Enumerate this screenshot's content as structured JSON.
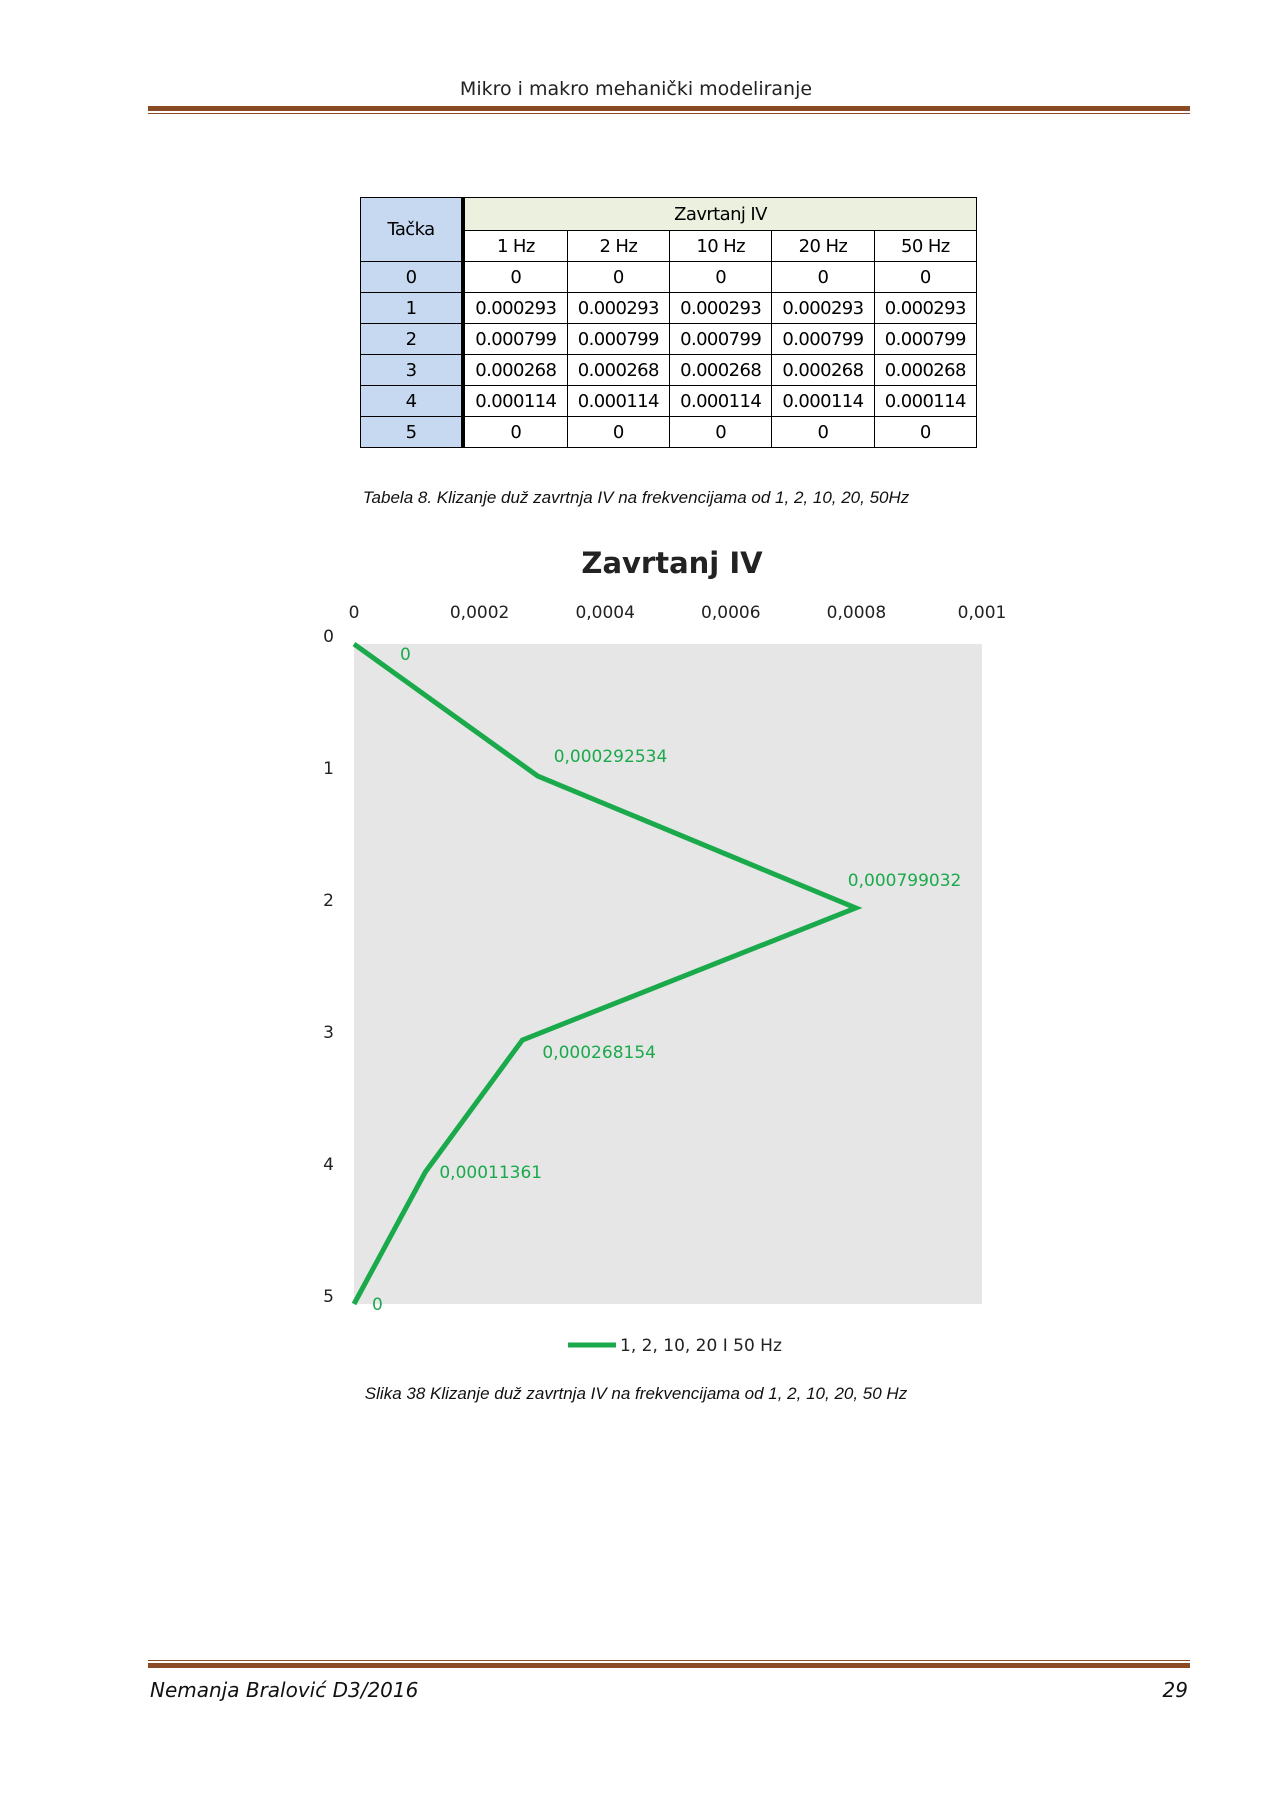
{
  "header": {
    "title": "Mikro i makro mehanički modeliranje"
  },
  "table": {
    "corner_label": "Tačka",
    "group_label": "Zavrtanj IV",
    "columns": [
      "1 Hz",
      "2 Hz",
      "10 Hz",
      "20 Hz",
      "50 Hz"
    ],
    "rows": [
      {
        "point": "0",
        "values": [
          "0",
          "0",
          "0",
          "0",
          "0"
        ]
      },
      {
        "point": "1",
        "values": [
          "0.000293",
          "0.000293",
          "0.000293",
          "0.000293",
          "0.000293"
        ]
      },
      {
        "point": "2",
        "values": [
          "0.000799",
          "0.000799",
          "0.000799",
          "0.000799",
          "0.000799"
        ]
      },
      {
        "point": "3",
        "values": [
          "0.000268",
          "0.000268",
          "0.000268",
          "0.000268",
          "0.000268"
        ]
      },
      {
        "point": "4",
        "values": [
          "0.000114",
          "0.000114",
          "0.000114",
          "0.000114",
          "0.000114"
        ]
      },
      {
        "point": "5",
        "values": [
          "0",
          "0",
          "0",
          "0",
          "0"
        ]
      }
    ],
    "caption": "Tabela 8. Klizanje duž zavrtnja IV na frekvencijama od 1, 2, 10, 20, 50Hz"
  },
  "chart_data": {
    "type": "line",
    "title": "Zavrtanj IV",
    "x_ticks": [
      "0",
      "0,0002",
      "0,0004",
      "0,0006",
      "0,0008",
      "0,001"
    ],
    "x_range": [
      0,
      0.001
    ],
    "y_ticks": [
      "0",
      "1",
      "2",
      "3",
      "4",
      "5"
    ],
    "y_range": [
      0,
      5
    ],
    "y_inverted": true,
    "x_axis_position": "top",
    "series": [
      {
        "name": "1, 2, 10, 20 I 50 Hz",
        "color": "#1aaa4b",
        "points": [
          {
            "y": 0,
            "x": 0,
            "label": "0"
          },
          {
            "y": 1,
            "x": 0.000292534,
            "label": "0,000292534"
          },
          {
            "y": 2,
            "x": 0.000799032,
            "label": "0,000799032"
          },
          {
            "y": 3,
            "x": 0.000268154,
            "label": "0,000268154"
          },
          {
            "y": 4,
            "x": 0.00011361,
            "label": "0,00011361"
          },
          {
            "y": 5,
            "x": 0,
            "label": "0"
          }
        ]
      }
    ],
    "legend_position": "bottom",
    "plot_background": "#e6e6e6",
    "caption": "Slika 38  Klizanje duž zavrtnja IV na frekvencijama od 1, 2, 10, 20, 50 Hz"
  },
  "footer": {
    "author": "Nemanja Bralović D3/2016",
    "page_number": "29"
  }
}
